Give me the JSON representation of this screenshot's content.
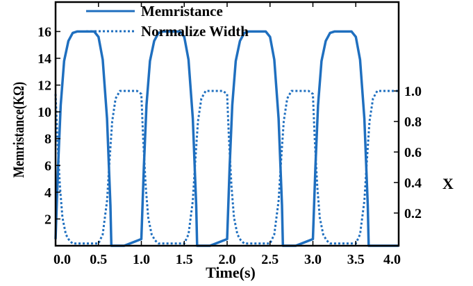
{
  "chart_data": {
    "type": "line",
    "xlabel": "Time(s)",
    "ylabel": "Memristance(KΩ)",
    "y2label": "X",
    "xlim": [
      0,
      4
    ],
    "ylim": [
      0,
      18.2
    ],
    "y2lim": [
      -0.0144,
      1.5826
    ],
    "x_ticks": [
      "0.0",
      "0.5",
      "1.0",
      "1.5",
      "2.0",
      "2.5",
      "3.0",
      "3.5",
      "4.0"
    ],
    "y_ticks": [
      "2",
      "4",
      "6",
      "8",
      "10",
      "12",
      "14",
      "16"
    ],
    "y2_ticks": [
      "0.2",
      "0.4",
      "0.6",
      "0.8",
      "1.0"
    ],
    "legend_position": "top-center",
    "color": "#1f6fbf",
    "series": [
      {
        "name": "Memristance",
        "axis": "left",
        "style": "solid",
        "x": [
          0.0,
          0.03,
          0.06,
          0.1,
          0.15,
          0.2,
          0.25,
          0.45,
          0.5,
          0.55,
          0.6,
          0.64,
          0.65,
          0.66,
          0.8,
          1.0,
          1.03,
          1.06,
          1.1,
          1.15,
          1.2,
          1.25,
          1.45,
          1.5,
          1.55,
          1.6,
          1.64,
          1.65,
          1.66,
          1.8,
          2.0,
          2.03,
          2.06,
          2.1,
          2.15,
          2.2,
          2.25,
          2.45,
          2.5,
          2.55,
          2.6,
          2.64,
          2.65,
          2.66,
          2.8,
          3.0,
          3.03,
          3.06,
          3.1,
          3.15,
          3.2,
          3.25,
          3.45,
          3.5,
          3.55,
          3.6,
          3.64,
          3.65,
          3.66,
          3.8,
          4.0
        ],
        "y": [
          0.5,
          6.0,
          10.5,
          13.8,
          15.3,
          15.9,
          16.0,
          16.0,
          15.6,
          13.9,
          9.5,
          3.0,
          0.0,
          0.0,
          0.0,
          0.5,
          6.0,
          10.5,
          13.8,
          15.3,
          15.9,
          16.0,
          16.0,
          15.6,
          13.9,
          9.5,
          3.0,
          0.0,
          0.0,
          0.0,
          0.5,
          6.0,
          10.5,
          13.8,
          15.3,
          15.9,
          16.0,
          16.0,
          15.6,
          13.9,
          9.5,
          3.0,
          0.0,
          0.0,
          0.0,
          0.5,
          6.0,
          10.5,
          13.8,
          15.3,
          15.9,
          16.0,
          16.0,
          15.6,
          13.9,
          9.5,
          3.0,
          0.0,
          0.0,
          0.0,
          0.0
        ]
      },
      {
        "name": "Normalize Width",
        "axis": "right",
        "style": "dotted",
        "x": [
          0.0,
          0.02,
          0.05,
          0.08,
          0.12,
          0.16,
          0.2,
          0.25,
          0.5,
          0.55,
          0.6,
          0.63,
          0.66,
          0.7,
          0.75,
          0.8,
          0.95,
          1.0,
          1.02,
          1.05,
          1.08,
          1.12,
          1.16,
          1.2,
          1.25,
          1.5,
          1.55,
          1.6,
          1.63,
          1.66,
          1.7,
          1.75,
          1.8,
          1.95,
          2.0,
          2.02,
          2.05,
          2.08,
          2.12,
          2.16,
          2.2,
          2.25,
          2.5,
          2.55,
          2.6,
          2.63,
          2.66,
          2.7,
          2.75,
          2.8,
          2.95,
          3.0,
          3.02,
          3.05,
          3.08,
          3.12,
          3.16,
          3.2,
          3.25,
          3.5,
          3.55,
          3.6,
          3.63,
          3.66,
          3.7,
          3.75,
          3.8,
          3.95,
          4.0
        ],
        "y": [
          0.98,
          0.7,
          0.38,
          0.17,
          0.06,
          0.02,
          0.0,
          0.0,
          0.0,
          0.06,
          0.28,
          0.55,
          0.8,
          0.95,
          1.0,
          1.0,
          1.0,
          0.98,
          0.7,
          0.38,
          0.17,
          0.06,
          0.02,
          0.0,
          0.0,
          0.0,
          0.06,
          0.28,
          0.55,
          0.8,
          0.95,
          1.0,
          1.0,
          1.0,
          0.98,
          0.7,
          0.38,
          0.17,
          0.06,
          0.02,
          0.0,
          0.0,
          0.0,
          0.06,
          0.28,
          0.55,
          0.8,
          0.95,
          1.0,
          1.0,
          1.0,
          0.98,
          0.7,
          0.38,
          0.17,
          0.06,
          0.02,
          0.0,
          0.0,
          0.0,
          0.06,
          0.28,
          0.55,
          0.8,
          0.95,
          1.0,
          1.0,
          1.0,
          1.0
        ]
      }
    ]
  }
}
